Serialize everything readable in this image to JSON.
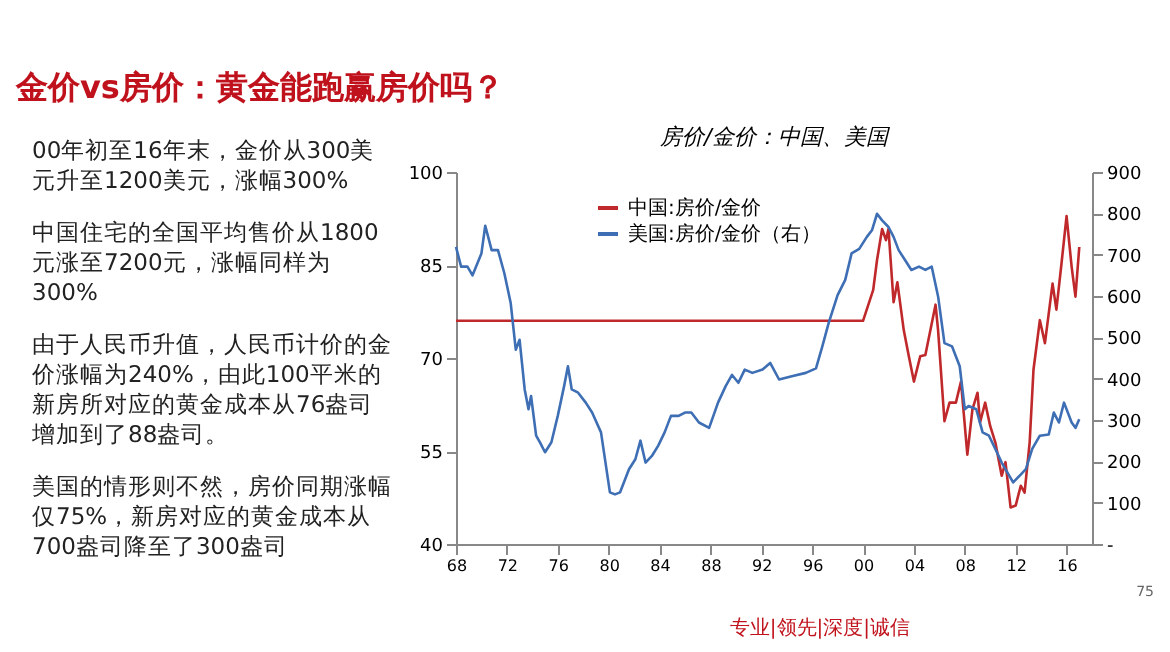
{
  "chart_data": {
    "type": "line",
    "title": "金价vs房价：黄金能跑赢房价吗？",
    "subtitle": "房价/金价：中国、美国",
    "annotations": [
      "00年初至16年末，金价从300美元升至1200美元，涨幅300%",
      "中国住宅的全国平均售价从1800元涨至7200元，涨幅同样为300%",
      "由于人民币升值，人民币计价的金价涨幅为240%，由此100平米的新房所对应的黄金成本从76盎司增加到了88盎司。",
      "美国的情形则不然，房价同期涨幅仅75%，新房对应的黄金成本从700盎司降至了300盎司",
      "专业|领先|深度|诚信",
      "75"
    ],
    "xlim": [
      1968,
      2018
    ],
    "xticks": [
      {
        "value": 1968,
        "label": "68"
      },
      {
        "value": 1972,
        "label": "72"
      },
      {
        "value": 1976,
        "label": "76"
      },
      {
        "value": 1980,
        "label": "80"
      },
      {
        "value": 1984,
        "label": "84"
      },
      {
        "value": 1988,
        "label": "88"
      },
      {
        "value": 1992,
        "label": "92"
      },
      {
        "value": 1996,
        "label": "96"
      },
      {
        "value": 2000,
        "label": "00"
      },
      {
        "value": 2004,
        "label": "04"
      },
      {
        "value": 2008,
        "label": "08"
      },
      {
        "value": 2012,
        "label": "12"
      },
      {
        "value": 2016,
        "label": "16"
      }
    ],
    "ylim": [
      40,
      100
    ],
    "yticks": [
      40,
      55,
      70,
      85,
      100
    ],
    "y2lim": [
      0,
      900
    ],
    "y2ticks": [
      {
        "value": 0,
        "label": "-"
      },
      100,
      200,
      300,
      400,
      500,
      600,
      700,
      800,
      900
    ],
    "legend": "top",
    "line_style": "solid",
    "series": [
      {
        "name": "中国:房价/金价",
        "color": "#c0292b",
        "x": [
          1968,
          2000.0,
          2000.8,
          2001.1,
          2001.5,
          2001.8,
          2002.0,
          2002.4,
          2002.7,
          2003.2,
          2003.6,
          2004.0,
          2004.5,
          2004.9,
          2005.7,
          2005.9,
          2006.4,
          2006.8,
          2007.3,
          2007.7,
          2008.2,
          2008.6,
          2009.0,
          2009.2,
          2009.6,
          2010.0,
          2010.4,
          2010.9,
          2011.2,
          2011.6,
          2012.0,
          2012.4,
          2012.7,
          2013.1,
          2013.4,
          2013.9,
          2014.3,
          2014.9,
          2015.2,
          2015.6,
          2016.0,
          2016.4,
          2016.7,
          2017.0
        ],
        "values": [
          76,
          76,
          81,
          85.8,
          90.8,
          89,
          90.8,
          79,
          82.2,
          74.5,
          70.3,
          66.2,
          70.3,
          70.5,
          78.6,
          74.5,
          59.8,
          62.8,
          62.8,
          66.2,
          54.4,
          61.7,
          64.4,
          59.6,
          62.8,
          59,
          56.4,
          51,
          53.2,
          45.9,
          46.2,
          49.4,
          48.3,
          56.4,
          68.1,
          76.1,
          72.4,
          82,
          77.8,
          85.2,
          92.9,
          84.7,
          79.9,
          87.9
        ]
      },
      {
        "name": "美国:房价/金价（右）",
        "color": "#3e6eb4",
        "axis": "y2",
        "x": [
          1968.0,
          1968.4,
          1968.9,
          1969.3,
          1970.0,
          1970.3,
          1970.8,
          1971.3,
          1971.8,
          1972.3,
          1972.7,
          1973.0,
          1973.4,
          1973.7,
          1973.9,
          1974.3,
          1974.6,
          1975.0,
          1975.5,
          1976.0,
          1976.5,
          1976.8,
          1977.1,
          1977.6,
          1978.2,
          1978.7,
          1979.4,
          1980.1,
          1980.5,
          1980.9,
          1981.6,
          1982.1,
          1982.5,
          1982.9,
          1983.4,
          1983.9,
          1984.4,
          1984.9,
          1985.5,
          1986.0,
          1986.5,
          1987.1,
          1987.9,
          1988.6,
          1989.2,
          1989.7,
          1990.2,
          1990.7,
          1991.3,
          1992.1,
          1992.7,
          1993.4,
          1994.4,
          1995.5,
          1996.3,
          1996.8,
          1997.3,
          1998.0,
          1998.6,
          1999.1,
          1999.7,
          2000.3,
          2000.7,
          2001.1,
          2001.5,
          2002.0,
          2002.4,
          2002.8,
          2003.3,
          2003.8,
          2004.4,
          2004.9,
          2005.4,
          2005.9,
          2006.4,
          2007.0,
          2007.6,
          2008.0,
          2008.3,
          2008.9,
          2009.4,
          2009.9,
          2010.4,
          2010.9,
          2011.8,
          2012.3,
          2012.8,
          2013.3,
          2013.9,
          2014.6,
          2015.0,
          2015.4,
          2015.8,
          2016.4,
          2016.7,
          2017.0
        ],
        "values": [
          719,
          671,
          671,
          650,
          703,
          770,
          711,
          711,
          655,
          583,
          470,
          494,
          374,
          326,
          358,
          262,
          246,
          222,
          246,
          310,
          382,
          430,
          374,
          366,
          342,
          318,
          270,
          125,
          120,
          125,
          181,
          205,
          250,
          197,
          213,
          238,
          270,
          310,
          310,
          318,
          318,
          294,
          281,
          342,
          382,
          409,
          390,
          422,
          414,
          422,
          438,
          398,
          406,
          414,
          425,
          478,
          535,
          602,
          639,
          703,
          714,
          743,
          759,
          799,
          783,
          767,
          743,
          711,
          687,
          663,
          671,
          663,
          671,
          599,
          486,
          478,
          430,
          326,
          334,
          326,
          270,
          262,
          230,
          197,
          149,
          165,
          181,
          230,
          262,
          265,
          318,
          294,
          342,
          294,
          281,
          302
        ]
      }
    ]
  }
}
